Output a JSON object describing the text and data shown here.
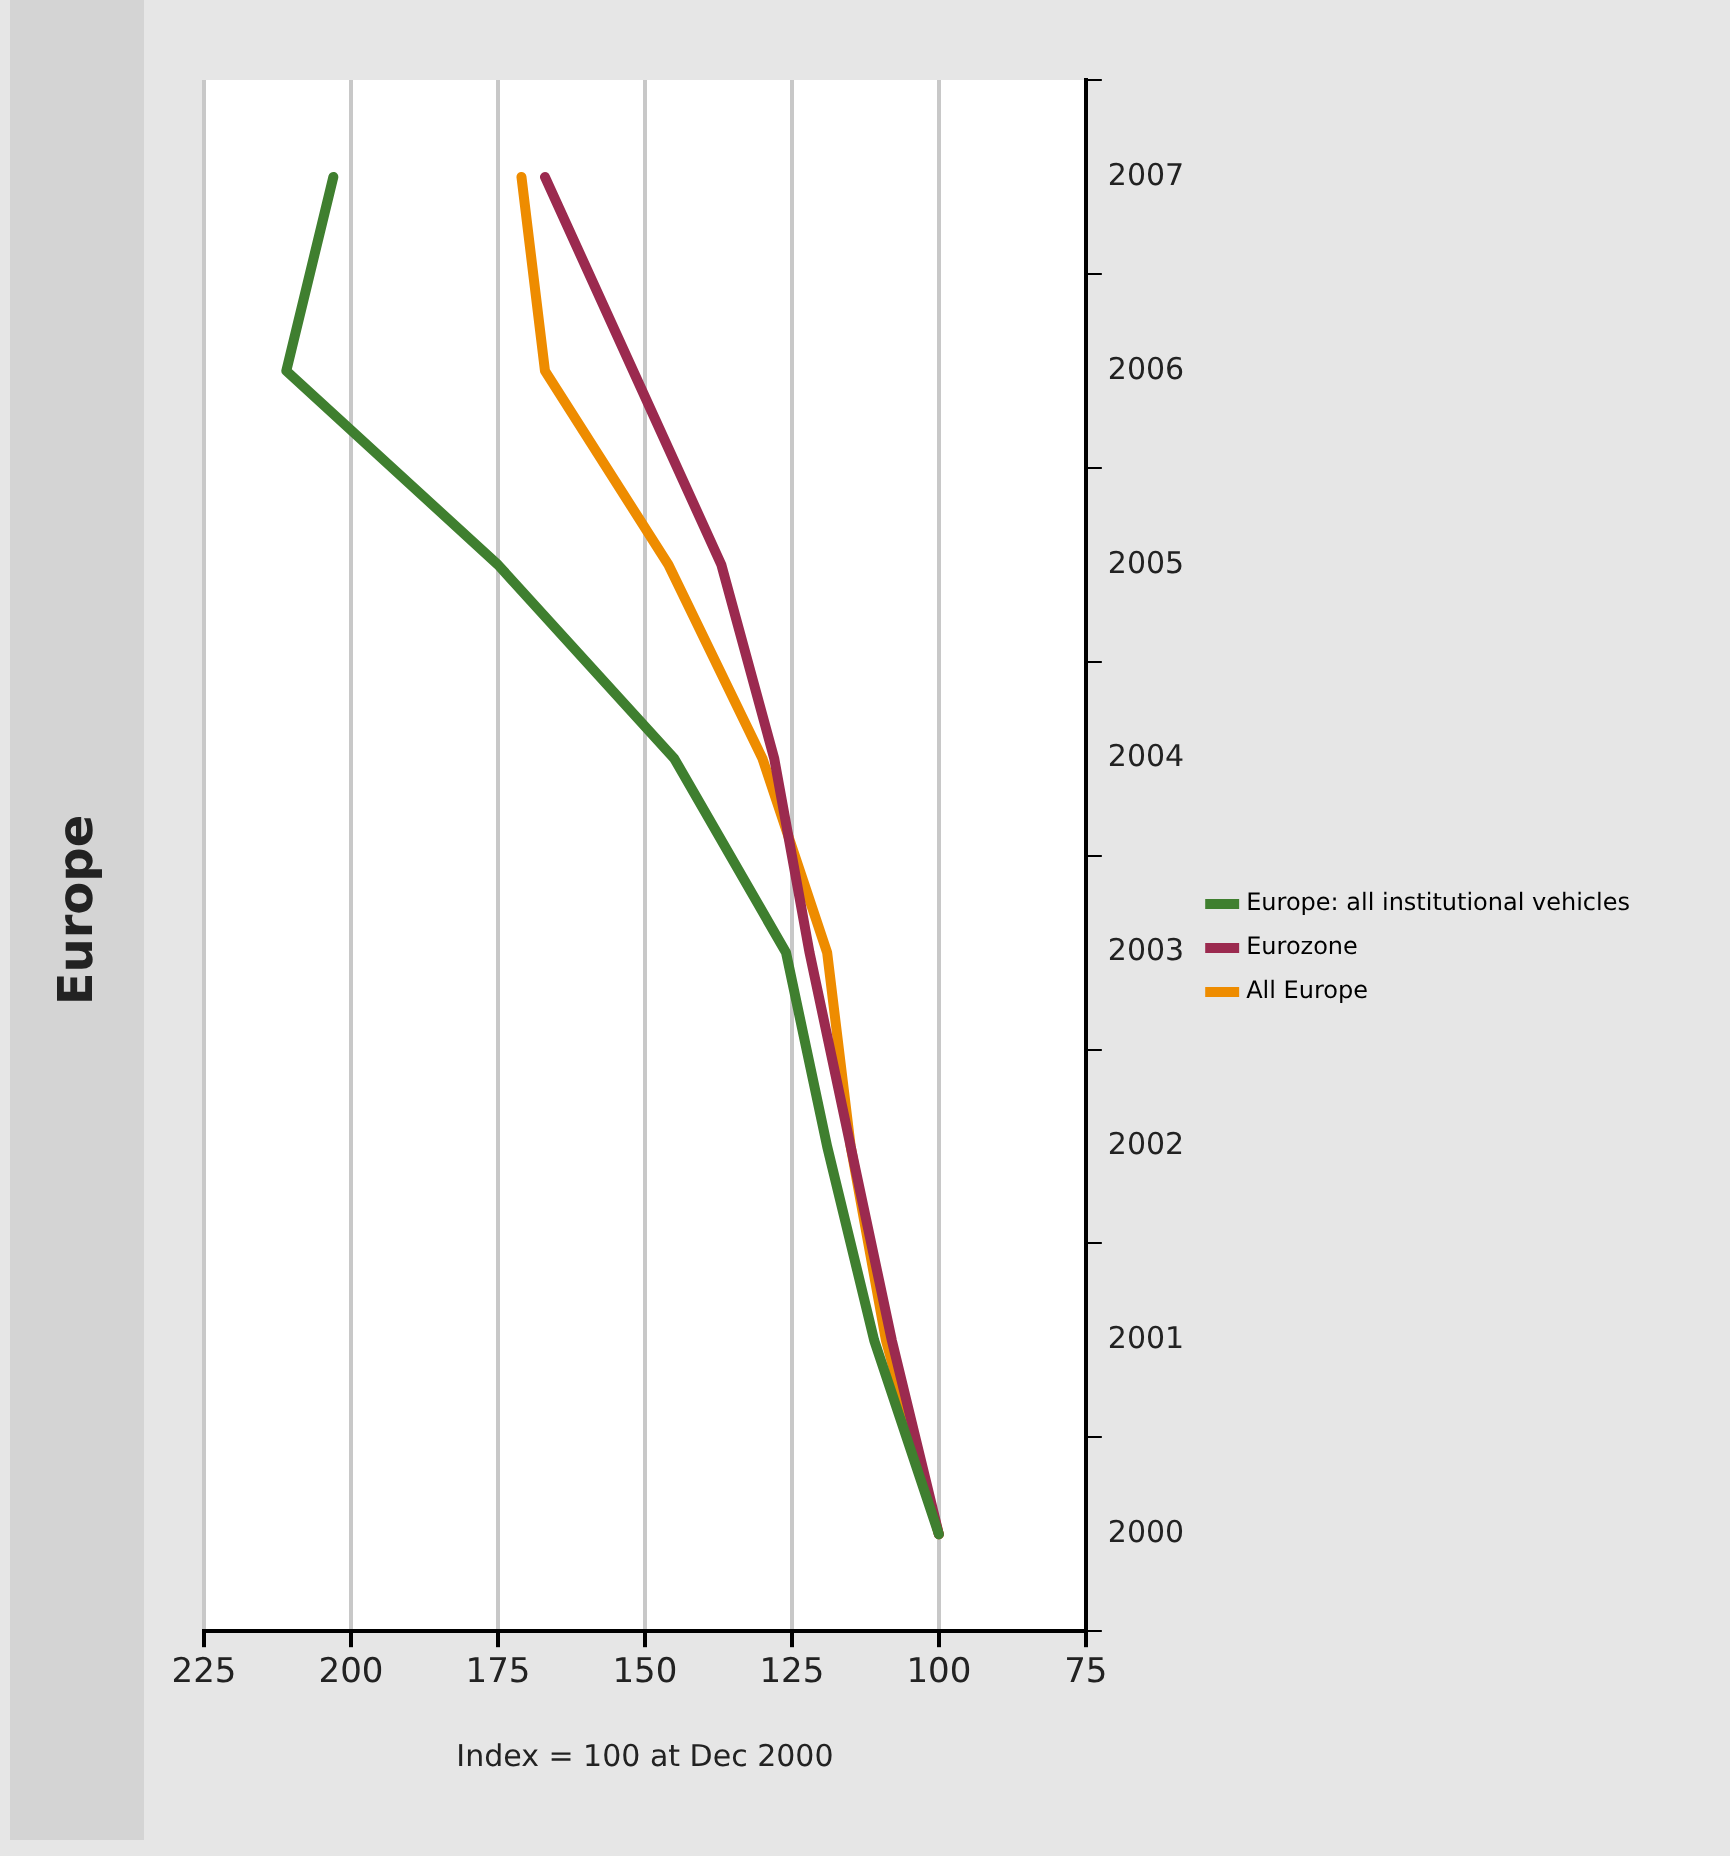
{
  "chart_data": {
    "type": "line",
    "title": "Europe",
    "xlabel": "Index = 100 at Dec 2000",
    "orientation": "horizontal",
    "categories": [
      "2007",
      "2006",
      "2005",
      "2004",
      "2003",
      "2002",
      "2001",
      "2000"
    ],
    "series": [
      {
        "name": "Europe: all institutional vehicles",
        "color": "#3f7f2f",
        "values": [
          203,
          211,
          175,
          145,
          126,
          119,
          111,
          100
        ]
      },
      {
        "name": "Eurozone",
        "color": "#9b2a4f",
        "values": [
          167,
          152,
          137,
          128,
          122,
          115,
          108,
          100
        ]
      },
      {
        "name": "All Europe",
        "color": "#ee8c00",
        "values": [
          171,
          167,
          146,
          130,
          119,
          115,
          109,
          100
        ]
      }
    ],
    "xlim": [
      225,
      75
    ],
    "xticks": [
      225,
      200,
      175,
      150,
      125,
      100,
      75
    ],
    "grid": "x",
    "legend": "right",
    "marker": "none"
  }
}
